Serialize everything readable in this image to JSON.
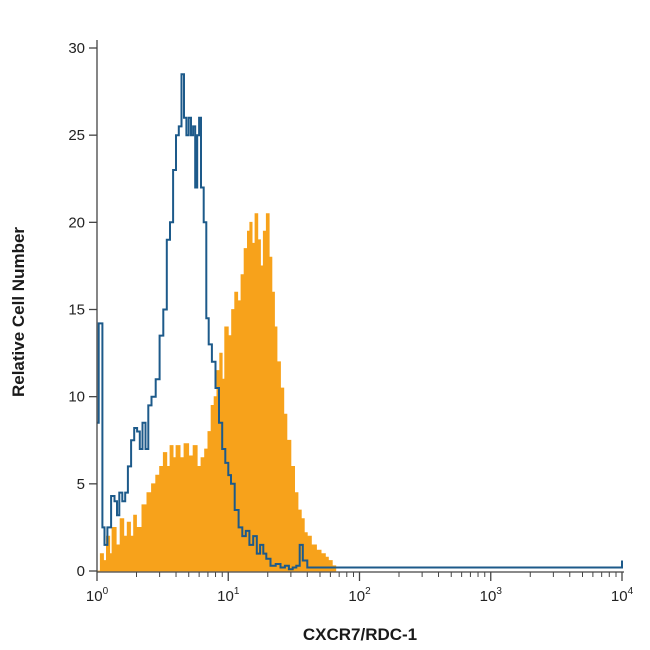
{
  "chart_data": {
    "type": "histogram",
    "xlabel": "CXCR7/RDC-1",
    "ylabel": "Relative Cell Number",
    "x_scale": "log",
    "xlim": [
      1,
      10000
    ],
    "ylim": [
      0,
      30
    ],
    "y_ticks": [
      {
        "value": 0,
        "label": "0"
      },
      {
        "value": 5,
        "label": "5"
      },
      {
        "value": 10,
        "label": "10"
      },
      {
        "value": 15,
        "label": "15"
      },
      {
        "value": 20,
        "label": "20"
      },
      {
        "value": 25,
        "label": "25"
      },
      {
        "value": 30,
        "label": "30"
      }
    ],
    "x_ticks": [
      {
        "value": 1,
        "base": "10",
        "exp": "0"
      },
      {
        "value": 10,
        "base": "10",
        "exp": "1"
      },
      {
        "value": 100,
        "base": "10",
        "exp": "2"
      },
      {
        "value": 1000,
        "base": "10",
        "exp": "3"
      },
      {
        "value": 10000,
        "base": "10",
        "exp": "4"
      }
    ],
    "grid": false,
    "series": [
      {
        "style": "filled",
        "color": "#F7A21B",
        "points": [
          [
            1.0,
            0
          ],
          [
            1.06,
            1.0
          ],
          [
            1.12,
            0.6
          ],
          [
            1.18,
            2.0
          ],
          [
            1.25,
            1.0
          ],
          [
            1.3,
            2.5
          ],
          [
            1.4,
            1.5
          ],
          [
            1.5,
            3.0
          ],
          [
            1.6,
            2.0
          ],
          [
            1.7,
            2.8
          ],
          [
            1.8,
            2.0
          ],
          [
            1.9,
            3.2
          ],
          [
            2.0,
            2.5
          ],
          [
            2.2,
            3.8
          ],
          [
            2.4,
            4.5
          ],
          [
            2.6,
            5.0
          ],
          [
            2.8,
            5.5
          ],
          [
            3.0,
            6.0
          ],
          [
            3.2,
            6.8
          ],
          [
            3.4,
            6.0
          ],
          [
            3.6,
            7.2
          ],
          [
            3.8,
            6.5
          ],
          [
            4.0,
            7.2
          ],
          [
            4.3,
            6.5
          ],
          [
            4.6,
            7.3
          ],
          [
            5.0,
            6.6
          ],
          [
            5.4,
            7.2
          ],
          [
            5.8,
            6.0
          ],
          [
            6.2,
            6.5
          ],
          [
            6.6,
            7.0
          ],
          [
            7.0,
            8.0
          ],
          [
            7.4,
            9.5
          ],
          [
            7.8,
            10.0
          ],
          [
            8.2,
            11.5
          ],
          [
            8.6,
            12.5
          ],
          [
            9.0,
            11.0
          ],
          [
            9.4,
            14.0
          ],
          [
            10.0,
            13.5
          ],
          [
            10.6,
            15.0
          ],
          [
            11.2,
            16.0
          ],
          [
            11.8,
            15.5
          ],
          [
            12.5,
            17.0
          ],
          [
            13.2,
            18.5
          ],
          [
            14.0,
            19.5
          ],
          [
            14.6,
            20.0
          ],
          [
            15.2,
            18.8
          ],
          [
            16.0,
            20.5
          ],
          [
            16.8,
            19.0
          ],
          [
            17.6,
            17.5
          ],
          [
            18.5,
            19.5
          ],
          [
            19.5,
            20.5
          ],
          [
            20.5,
            18.0
          ],
          [
            21.5,
            16.0
          ],
          [
            22.5,
            14.0
          ],
          [
            23.5,
            12.0
          ],
          [
            25.0,
            10.5
          ],
          [
            26.5,
            9.0
          ],
          [
            28.0,
            7.5
          ],
          [
            30.0,
            6.0
          ],
          [
            32.0,
            4.5
          ],
          [
            34.0,
            3.5
          ],
          [
            36.0,
            3.0
          ],
          [
            38.0,
            2.2
          ],
          [
            40.0,
            2.0
          ],
          [
            43.0,
            1.5
          ],
          [
            47.0,
            1.2
          ],
          [
            51.0,
            1.0
          ],
          [
            55.0,
            0.8
          ],
          [
            58.0,
            0.6
          ],
          [
            62.0,
            0.3
          ],
          [
            66.0,
            0
          ]
        ]
      },
      {
        "style": "line",
        "color": "#1D5A8A",
        "points": [
          [
            1.0,
            8.5
          ],
          [
            1.03,
            14.2
          ],
          [
            1.07,
            14.2
          ],
          [
            1.1,
            2.5
          ],
          [
            1.14,
            1.5
          ],
          [
            1.2,
            2.5
          ],
          [
            1.28,
            4.3
          ],
          [
            1.36,
            4.0
          ],
          [
            1.42,
            3.2
          ],
          [
            1.48,
            4.5
          ],
          [
            1.56,
            4.0
          ],
          [
            1.64,
            4.5
          ],
          [
            1.72,
            6.0
          ],
          [
            1.82,
            7.5
          ],
          [
            1.92,
            8.2
          ],
          [
            2.02,
            8.0
          ],
          [
            2.12,
            7.0
          ],
          [
            2.22,
            8.5
          ],
          [
            2.34,
            7.0
          ],
          [
            2.46,
            9.5
          ],
          [
            2.6,
            10.0
          ],
          [
            2.8,
            11.0
          ],
          [
            3.0,
            13.5
          ],
          [
            3.2,
            15.0
          ],
          [
            3.4,
            19.0
          ],
          [
            3.6,
            20.0
          ],
          [
            3.8,
            23.0
          ],
          [
            4.0,
            25.0
          ],
          [
            4.2,
            25.5
          ],
          [
            4.4,
            28.5
          ],
          [
            4.6,
            26.0
          ],
          [
            4.8,
            25.0
          ],
          [
            5.0,
            26.0
          ],
          [
            5.2,
            25.0
          ],
          [
            5.4,
            25.5
          ],
          [
            5.6,
            22.0
          ],
          [
            5.8,
            25.0
          ],
          [
            6.0,
            26.0
          ],
          [
            6.2,
            22.0
          ],
          [
            6.5,
            20.0
          ],
          [
            6.8,
            14.5
          ],
          [
            7.1,
            13.0
          ],
          [
            7.5,
            12.0
          ],
          [
            8.0,
            10.5
          ],
          [
            8.5,
            8.5
          ],
          [
            9.0,
            7.0
          ],
          [
            9.5,
            6.2
          ],
          [
            10.0,
            5.5
          ],
          [
            10.5,
            5.0
          ],
          [
            11.2,
            3.5
          ],
          [
            12.0,
            2.5
          ],
          [
            12.8,
            2.0
          ],
          [
            13.6,
            2.3
          ],
          [
            14.5,
            1.5
          ],
          [
            15.5,
            2.0
          ],
          [
            16.5,
            1.0
          ],
          [
            17.5,
            1.5
          ],
          [
            18.5,
            1.0
          ],
          [
            19.5,
            0.7
          ],
          [
            21.0,
            0.3
          ],
          [
            23.0,
            0.4
          ],
          [
            25.0,
            0.2
          ],
          [
            27.0,
            0.3
          ],
          [
            29.0,
            0.1
          ],
          [
            31.0,
            0.2
          ],
          [
            33.0,
            0.3
          ],
          [
            35.0,
            1.5
          ],
          [
            37.0,
            0.6
          ],
          [
            40.0,
            0.2
          ],
          [
            45.0,
            0.2
          ],
          [
            50.0,
            0.2
          ],
          [
            60.0,
            0.2
          ],
          [
            80.0,
            0.2
          ],
          [
            200.0,
            0.2
          ],
          [
            1000.0,
            0.2
          ],
          [
            9999.0,
            0.2
          ],
          [
            10000.0,
            0.6
          ]
        ]
      }
    ]
  }
}
